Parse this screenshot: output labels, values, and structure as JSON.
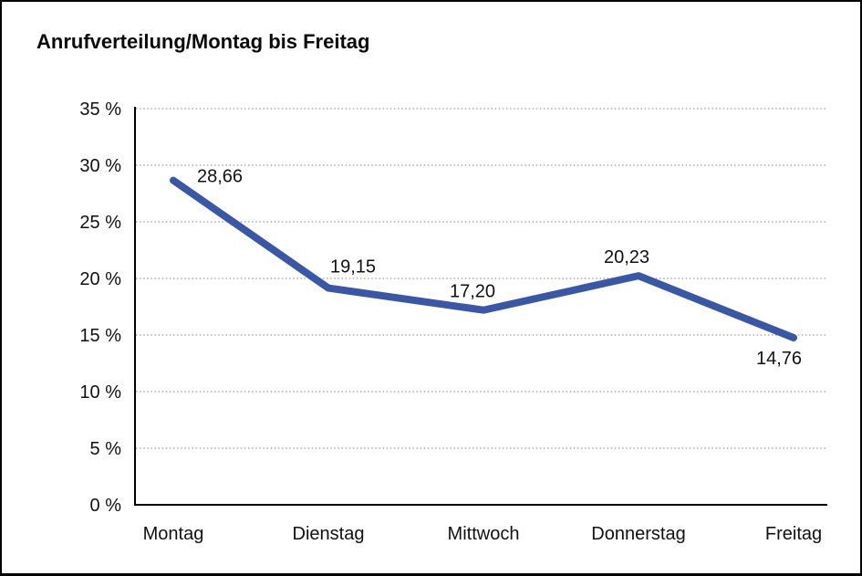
{
  "title": "Anrufverteilung/Montag bis Freitag",
  "chart_data": {
    "type": "line",
    "title": "Anrufverteilung/Montag bis Freitag",
    "categories": [
      "Montag",
      "Dienstag",
      "Mittwoch",
      "Donnerstag",
      "Freitag"
    ],
    "values": [
      28.66,
      19.15,
      17.2,
      20.23,
      14.76
    ],
    "value_labels": [
      "28,66",
      "19,15",
      "17,20",
      "20,23",
      "14,76"
    ],
    "xlabel": "",
    "ylabel": "",
    "ylim": [
      0,
      35
    ],
    "ytick_step": 5,
    "ytick_labels": [
      "0 %",
      "5 %",
      "10 %",
      "15 %",
      "20 %",
      "25 %",
      "30 %",
      "35 %"
    ],
    "grid": "horizontal-dotted",
    "legend": "none",
    "decimal_separator": ",",
    "colors": {
      "line": "#3A57A7",
      "axis": "#000000",
      "gridline": "#999999",
      "text": "#111111",
      "background": "#FFFFFF"
    }
  }
}
